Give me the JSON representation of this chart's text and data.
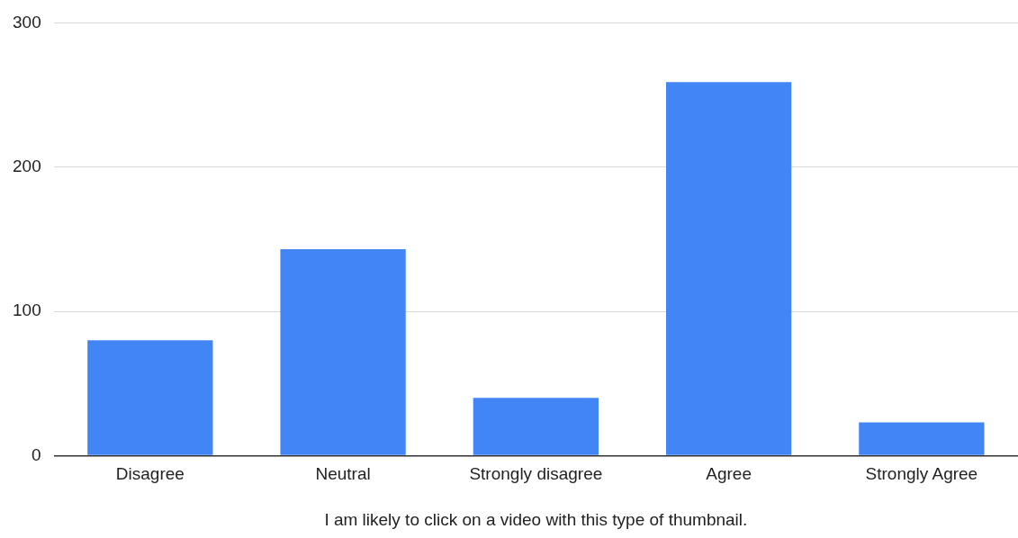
{
  "chart_data": {
    "type": "bar",
    "xlabel": "I am likely to click on a video with this type of thumbnail.",
    "categories": [
      "Disagree",
      "Neutral",
      "Strongly disagree",
      "Agree",
      "Strongly Agree"
    ],
    "values": [
      80,
      143,
      40,
      259,
      23
    ],
    "color": "#4285f4",
    "ylim": [
      0,
      300
    ],
    "yticks": [
      0,
      100,
      200,
      300
    ],
    "grid": "y",
    "legend": false
  }
}
